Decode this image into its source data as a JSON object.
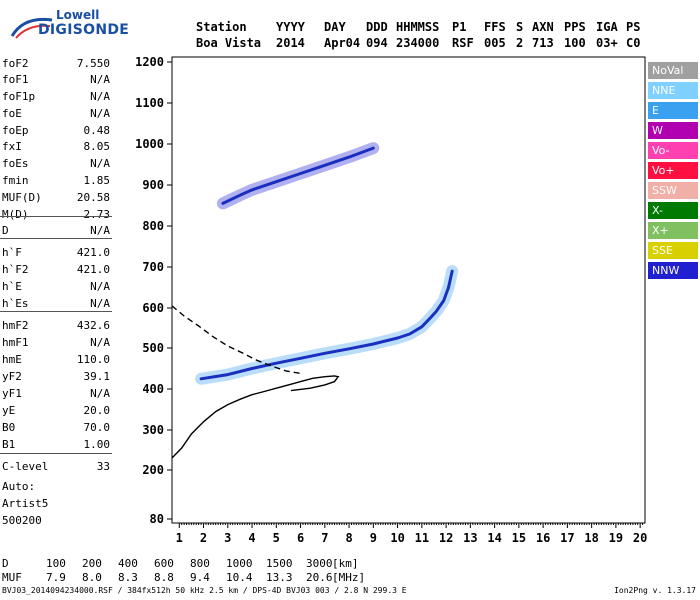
{
  "logo": {
    "line1": "Lowell",
    "line2": "DIGISONDE"
  },
  "header": {
    "labels": [
      "Station",
      "YYYY",
      "DAY",
      "DDD",
      "HHMMSS",
      "P1",
      "FFS",
      "S",
      "AXN",
      "PPS",
      "IGA",
      "PS"
    ],
    "values": [
      "Boa Vista",
      "2014",
      "Apr04",
      "094",
      "234000",
      "RSF",
      "005",
      "2",
      "713",
      "100",
      "03+",
      "C0"
    ]
  },
  "params": [
    {
      "name": "foF2",
      "value": "7.550"
    },
    {
      "name": "foF1",
      "value": "N/A"
    },
    {
      "name": "foF1p",
      "value": "N/A"
    },
    {
      "name": "foE",
      "value": "N/A"
    },
    {
      "name": "foEp",
      "value": "0.48"
    },
    {
      "name": "fxI",
      "value": "8.05"
    },
    {
      "name": "foEs",
      "value": "N/A"
    },
    {
      "name": "fmin",
      "value": "1.85"
    },
    {
      "name": "MUF(D)",
      "value": "20.58"
    },
    {
      "name": "M(D)",
      "value": "2.73"
    },
    {
      "name": "D",
      "value": "N/A"
    },
    {
      "name": "h`F",
      "value": "421.0"
    },
    {
      "name": "h`F2",
      "value": "421.0"
    },
    {
      "name": "h`E",
      "value": "N/A"
    },
    {
      "name": "h`Es",
      "value": "N/A"
    },
    {
      "name": "hmF2",
      "value": "432.6"
    },
    {
      "name": "hmF1",
      "value": "N/A"
    },
    {
      "name": "hmE",
      "value": "110.0"
    },
    {
      "name": "yF2",
      "value": "39.1"
    },
    {
      "name": "yF1",
      "value": "N/A"
    },
    {
      "name": "yE",
      "value": "20.0"
    },
    {
      "name": "B0",
      "value": "70.0"
    },
    {
      "name": "B1",
      "value": "1.00"
    },
    {
      "name": "C-level",
      "value": "33"
    }
  ],
  "autoscale": {
    "line1": "Auto:",
    "line2": "Artist5",
    "line3": "500200"
  },
  "legend": [
    {
      "label": "NoVal",
      "color": "#a0a0a0"
    },
    {
      "label": "NNE",
      "color": "#7fd0ff"
    },
    {
      "label": "E",
      "color": "#3aa0f0"
    },
    {
      "label": "W",
      "color": "#b000b0"
    },
    {
      "label": "Vo-",
      "color": "#ff40b0"
    },
    {
      "label": "Vo+",
      "color": "#ff1040"
    },
    {
      "label": "SSW",
      "color": "#f0b0a8"
    },
    {
      "label": "X-",
      "color": "#007a00"
    },
    {
      "label": "X+",
      "color": "#80c060"
    },
    {
      "label": "SSE",
      "color": "#d8d000"
    },
    {
      "label": "NNW",
      "color": "#2020d0"
    }
  ],
  "muf_table": {
    "d_label": "D",
    "d_values": [
      "100",
      "200",
      "400",
      "600",
      "800",
      "1000",
      "1500",
      "3000"
    ],
    "d_unit": "[km]",
    "muf_label": "MUF",
    "muf_values": [
      "7.9",
      "8.0",
      "8.3",
      "8.8",
      "9.4",
      "10.4",
      "13.3",
      "20.6"
    ],
    "muf_unit": "[MHz]"
  },
  "footer": {
    "left": "BVJ03_2014094234000.RSF / 384fx512h 50 kHz 2.5 km / DPS-4D BVJ03 003 / 2.8 N 299.3 E",
    "right": "Ion2Png v. 1.3.17"
  },
  "chart_data": {
    "type": "scatter",
    "title": "",
    "xlabel": "",
    "ylabel": "",
    "xlim": [
      0.7,
      20.2
    ],
    "ylim": [
      80,
      1210
    ],
    "x_ticks": [
      1,
      2,
      3,
      4,
      5,
      6,
      7,
      8,
      9,
      10,
      11,
      12,
      13,
      14,
      15,
      16,
      17,
      18,
      19,
      20
    ],
    "y_ticks": [
      80,
      200,
      300,
      400,
      500,
      600,
      700,
      800,
      900,
      1000,
      1100,
      1200
    ],
    "grid": false,
    "legend_position": "right",
    "series": [
      {
        "name": "",
        "kind": "trace",
        "color": "#3aa0f0",
        "points": [
          [
            1.9,
            425
          ],
          [
            3.0,
            435
          ],
          [
            4.0,
            450
          ],
          [
            5.0,
            463
          ],
          [
            6.0,
            475
          ],
          [
            7.0,
            487
          ],
          [
            8.0,
            498
          ],
          [
            9.0,
            510
          ],
          [
            10.0,
            525
          ],
          [
            10.5,
            535
          ],
          [
            11.0,
            553
          ],
          [
            11.3,
            572
          ],
          [
            11.6,
            592
          ],
          [
            11.9,
            618
          ],
          [
            12.1,
            650
          ],
          [
            12.25,
            690
          ]
        ]
      },
      {
        "name": "",
        "kind": "trace",
        "color": "#2020d0",
        "points": [
          [
            2.8,
            855
          ],
          [
            3.5,
            875
          ],
          [
            4.0,
            888
          ],
          [
            5.0,
            908
          ],
          [
            6.0,
            928
          ],
          [
            7.0,
            948
          ],
          [
            8.0,
            968
          ],
          [
            9.0,
            990
          ]
        ]
      },
      {
        "name": "",
        "kind": "profile",
        "color": "#000000",
        "dash": "solid",
        "points": [
          [
            0.7,
            230
          ],
          [
            1.1,
            255
          ],
          [
            1.5,
            290
          ],
          [
            2.0,
            320
          ],
          [
            2.5,
            345
          ],
          [
            3.0,
            362
          ],
          [
            3.5,
            375
          ],
          [
            4.0,
            386
          ],
          [
            4.5,
            394
          ],
          [
            5.0,
            402
          ],
          [
            5.5,
            410
          ],
          [
            6.0,
            418
          ],
          [
            6.5,
            426
          ],
          [
            7.0,
            430
          ],
          [
            7.4,
            432
          ],
          [
            7.55,
            430
          ],
          [
            7.4,
            418
          ],
          [
            7.0,
            410
          ],
          [
            6.4,
            402
          ],
          [
            5.6,
            396
          ]
        ]
      },
      {
        "name": "",
        "kind": "profile",
        "color": "#000000",
        "dash": "dashed",
        "points": [
          [
            0.7,
            605
          ],
          [
            1.2,
            580
          ],
          [
            1.8,
            555
          ],
          [
            2.4,
            528
          ],
          [
            3.0,
            505
          ],
          [
            3.6,
            488
          ],
          [
            4.2,
            470
          ],
          [
            4.8,
            456
          ],
          [
            5.4,
            444
          ],
          [
            6.0,
            438
          ]
        ]
      }
    ]
  }
}
